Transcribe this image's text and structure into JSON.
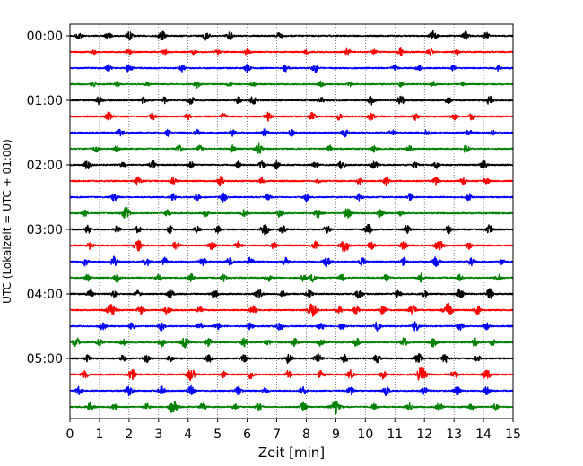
{
  "chart_data": {
    "type": "line",
    "subtype": "helicorder",
    "xlabel": "Zeit  [min]",
    "ylabel": "UTC (Lokalzeit = UTC + 01:00)",
    "xlim": [
      0,
      15
    ],
    "x_ticks": [
      0,
      1,
      2,
      3,
      4,
      5,
      6,
      7,
      8,
      9,
      10,
      11,
      12,
      13,
      14,
      15
    ],
    "minutes_per_line": 15,
    "y_tick_labels": [
      "00:00",
      "01:00",
      "02:00",
      "03:00",
      "04:00",
      "05:00"
    ],
    "vertical_grid": "dotted",
    "trace_colors": [
      "#000000",
      "#ff0000",
      "#0000ff",
      "#008000"
    ],
    "traces": [
      {
        "start": "00:00",
        "color": "#000000",
        "bursts": [
          [
            0.3,
            0.4
          ],
          [
            1.3,
            0.4
          ],
          [
            2.0,
            0.5
          ],
          [
            3.1,
            0.6
          ],
          [
            4.6,
            0.5
          ],
          [
            5.4,
            0.5
          ],
          [
            7.1,
            0.4
          ],
          [
            12.3,
            0.6
          ],
          [
            13.4,
            0.5
          ],
          [
            14.1,
            0.4
          ]
        ]
      },
      {
        "start": "00:15",
        "color": "#ff0000",
        "bursts": [
          [
            0.8,
            0.3
          ],
          [
            2.0,
            0.3
          ],
          [
            3.2,
            0.4
          ],
          [
            4.2,
            0.3
          ],
          [
            5.0,
            0.3
          ],
          [
            6.0,
            0.4
          ],
          [
            8.0,
            0.3
          ],
          [
            9.4,
            0.4
          ],
          [
            10.3,
            0.3
          ],
          [
            11.2,
            0.4
          ],
          [
            12.2,
            0.4
          ],
          [
            13.1,
            0.3
          ]
        ]
      },
      {
        "start": "00:30",
        "color": "#0000ff",
        "bursts": [
          [
            1.3,
            0.4
          ],
          [
            2.0,
            0.5
          ],
          [
            3.8,
            0.4
          ],
          [
            6.0,
            0.5
          ],
          [
            7.3,
            0.4
          ],
          [
            8.3,
            0.5
          ],
          [
            11.0,
            0.4
          ],
          [
            11.8,
            0.4
          ],
          [
            13.0,
            0.4
          ],
          [
            14.5,
            0.3
          ]
        ]
      },
      {
        "start": "00:45",
        "color": "#008000",
        "bursts": [
          [
            0.8,
            0.3
          ],
          [
            1.6,
            0.3
          ],
          [
            2.6,
            0.3
          ],
          [
            4.3,
            0.4
          ],
          [
            5.4,
            0.3
          ],
          [
            6.2,
            0.3
          ],
          [
            8.5,
            0.4
          ],
          [
            9.5,
            0.3
          ],
          [
            11.2,
            0.3
          ],
          [
            12.3,
            0.3
          ],
          [
            13.3,
            0.3
          ]
        ]
      },
      {
        "start": "01:00",
        "color": "#000000",
        "bursts": [
          [
            1.0,
            0.5
          ],
          [
            2.5,
            0.4
          ],
          [
            3.2,
            0.4
          ],
          [
            4.1,
            0.5
          ],
          [
            5.7,
            0.4
          ],
          [
            6.2,
            0.5
          ],
          [
            8.5,
            0.4
          ],
          [
            10.2,
            0.5
          ],
          [
            11.2,
            0.6
          ],
          [
            12.8,
            0.4
          ],
          [
            14.2,
            0.5
          ]
        ]
      },
      {
        "start": "01:15",
        "color": "#ff0000",
        "bursts": [
          [
            1.3,
            0.5
          ],
          [
            2.8,
            0.4
          ],
          [
            4.0,
            0.4
          ],
          [
            5.2,
            0.4
          ],
          [
            6.7,
            0.5
          ],
          [
            8.2,
            0.5
          ],
          [
            9.1,
            0.4
          ],
          [
            10.2,
            0.5
          ],
          [
            11.7,
            0.4
          ],
          [
            13.0,
            0.4
          ],
          [
            13.6,
            0.4
          ]
        ]
      },
      {
        "start": "01:30",
        "color": "#0000ff",
        "bursts": [
          [
            1.7,
            0.5
          ],
          [
            3.3,
            0.4
          ],
          [
            4.3,
            0.4
          ],
          [
            5.5,
            0.4
          ],
          [
            6.6,
            0.5
          ],
          [
            7.5,
            0.4
          ],
          [
            9.3,
            0.5
          ],
          [
            10.9,
            0.4
          ],
          [
            12.1,
            0.4
          ],
          [
            13.5,
            0.4
          ],
          [
            14.3,
            0.3
          ]
        ]
      },
      {
        "start": "01:45",
        "color": "#008000",
        "bursts": [
          [
            0.9,
            0.4
          ],
          [
            1.6,
            0.4
          ],
          [
            3.7,
            0.4
          ],
          [
            4.4,
            0.4
          ],
          [
            5.5,
            0.4
          ],
          [
            6.4,
            0.6
          ],
          [
            8.8,
            0.4
          ],
          [
            10.3,
            0.4
          ],
          [
            11.5,
            0.4
          ],
          [
            13.4,
            0.5
          ]
        ]
      },
      {
        "start": "02:00",
        "color": "#000000",
        "bursts": [
          [
            0.6,
            0.6
          ],
          [
            1.8,
            0.4
          ],
          [
            2.8,
            0.5
          ],
          [
            4.1,
            0.4
          ],
          [
            5.7,
            0.4
          ],
          [
            6.5,
            0.5
          ],
          [
            7.0,
            0.5
          ],
          [
            8.3,
            0.4
          ],
          [
            9.2,
            0.5
          ],
          [
            10.3,
            0.5
          ],
          [
            11.7,
            0.4
          ],
          [
            12.4,
            0.4
          ],
          [
            14.0,
            0.5
          ]
        ]
      },
      {
        "start": "02:15",
        "color": "#ff0000",
        "bursts": [
          [
            2.3,
            0.5
          ],
          [
            3.5,
            0.4
          ],
          [
            5.1,
            0.5
          ],
          [
            6.5,
            0.4
          ],
          [
            8.4,
            0.3
          ],
          [
            9.8,
            0.4
          ],
          [
            10.7,
            0.5
          ],
          [
            12.4,
            0.5
          ],
          [
            13.3,
            0.4
          ],
          [
            14.1,
            0.4
          ]
        ]
      },
      {
        "start": "02:30",
        "color": "#0000ff",
        "bursts": [
          [
            1.5,
            0.5
          ],
          [
            3.5,
            0.4
          ],
          [
            4.3,
            0.4
          ],
          [
            5.2,
            0.5
          ],
          [
            6.7,
            0.4
          ],
          [
            8.0,
            0.4
          ],
          [
            9.8,
            0.4
          ],
          [
            11.5,
            0.4
          ],
          [
            13.5,
            0.4
          ]
        ]
      },
      {
        "start": "02:45",
        "color": "#008000",
        "bursts": [
          [
            0.5,
            0.4
          ],
          [
            1.9,
            0.7
          ],
          [
            3.3,
            0.4
          ],
          [
            4.6,
            0.4
          ],
          [
            5.9,
            0.4
          ],
          [
            7.1,
            0.5
          ],
          [
            8.4,
            0.6
          ],
          [
            9.4,
            0.6
          ],
          [
            10.5,
            0.5
          ],
          [
            11.2,
            0.3
          ]
        ]
      },
      {
        "start": "03:00",
        "color": "#000000",
        "bursts": [
          [
            0.6,
            0.5
          ],
          [
            1.6,
            0.4
          ],
          [
            2.3,
            0.4
          ],
          [
            3.4,
            0.5
          ],
          [
            4.3,
            0.4
          ],
          [
            5.0,
            0.4
          ],
          [
            6.6,
            0.7
          ],
          [
            7.2,
            0.5
          ],
          [
            8.7,
            0.5
          ],
          [
            10.1,
            0.6
          ],
          [
            11.4,
            0.5
          ],
          [
            12.8,
            0.5
          ],
          [
            14.2,
            0.5
          ]
        ]
      },
      {
        "start": "03:15",
        "color": "#ff0000",
        "bursts": [
          [
            0.7,
            0.5
          ],
          [
            2.3,
            0.7
          ],
          [
            3.6,
            0.5
          ],
          [
            4.8,
            0.5
          ],
          [
            5.7,
            0.5
          ],
          [
            6.9,
            0.4
          ],
          [
            8.3,
            0.5
          ],
          [
            9.3,
            0.8
          ],
          [
            10.2,
            0.5
          ],
          [
            11.3,
            0.5
          ],
          [
            12.5,
            0.7
          ],
          [
            13.5,
            0.4
          ]
        ]
      },
      {
        "start": "03:30",
        "color": "#0000ff",
        "bursts": [
          [
            0.5,
            0.5
          ],
          [
            1.5,
            0.6
          ],
          [
            2.6,
            0.5
          ],
          [
            3.2,
            0.5
          ],
          [
            4.5,
            0.5
          ],
          [
            5.4,
            0.5
          ],
          [
            6.1,
            0.5
          ],
          [
            7.3,
            0.5
          ],
          [
            8.7,
            0.6
          ],
          [
            9.9,
            0.5
          ],
          [
            11.3,
            0.5
          ],
          [
            12.4,
            0.6
          ],
          [
            13.6,
            0.5
          ],
          [
            14.6,
            0.4
          ]
        ]
      },
      {
        "start": "03:45",
        "color": "#008000",
        "bursts": [
          [
            0.6,
            0.4
          ],
          [
            1.6,
            0.5
          ],
          [
            3.0,
            0.4
          ],
          [
            4.1,
            0.5
          ],
          [
            5.2,
            0.4
          ],
          [
            6.7,
            0.5
          ],
          [
            7.9,
            0.4
          ],
          [
            8.2,
            0.5
          ],
          [
            9.2,
            0.4
          ],
          [
            10.7,
            0.4
          ],
          [
            11.9,
            0.5
          ],
          [
            13.2,
            0.4
          ],
          [
            14.5,
            0.4
          ]
        ]
      },
      {
        "start": "04:00",
        "color": "#000000",
        "bursts": [
          [
            0.7,
            0.5
          ],
          [
            1.5,
            0.4
          ],
          [
            2.3,
            0.4
          ],
          [
            3.4,
            0.5
          ],
          [
            4.9,
            0.5
          ],
          [
            6.4,
            0.6
          ],
          [
            7.2,
            0.4
          ],
          [
            8.1,
            0.5
          ],
          [
            9.8,
            0.6
          ],
          [
            11.1,
            0.5
          ],
          [
            12.0,
            0.4
          ],
          [
            13.2,
            0.6
          ],
          [
            14.2,
            0.6
          ]
        ]
      },
      {
        "start": "04:15",
        "color": "#ff0000",
        "bursts": [
          [
            1.4,
            0.8
          ],
          [
            2.4,
            0.5
          ],
          [
            3.3,
            0.5
          ],
          [
            4.4,
            0.4
          ],
          [
            6.2,
            0.5
          ],
          [
            8.2,
            0.8
          ],
          [
            9.1,
            0.5
          ],
          [
            9.7,
            0.5
          ],
          [
            10.6,
            0.5
          ],
          [
            11.6,
            0.6
          ],
          [
            12.8,
            0.8
          ],
          [
            13.8,
            0.5
          ]
        ]
      },
      {
        "start": "04:30",
        "color": "#0000ff",
        "bursts": [
          [
            1.1,
            0.5
          ],
          [
            2.1,
            0.4
          ],
          [
            3.1,
            0.5
          ],
          [
            4.4,
            0.4
          ],
          [
            5.0,
            0.4
          ],
          [
            6.1,
            0.4
          ],
          [
            7.1,
            0.5
          ],
          [
            8.5,
            0.5
          ],
          [
            9.2,
            0.4
          ],
          [
            10.4,
            0.5
          ],
          [
            11.7,
            0.6
          ],
          [
            13.2,
            0.5
          ],
          [
            14.1,
            0.4
          ]
        ]
      },
      {
        "start": "04:45",
        "color": "#008000",
        "bursts": [
          [
            0.2,
            0.6
          ],
          [
            1.0,
            0.4
          ],
          [
            1.8,
            0.4
          ],
          [
            3.1,
            0.5
          ],
          [
            3.9,
            0.7
          ],
          [
            4.7,
            0.5
          ],
          [
            5.9,
            0.5
          ],
          [
            6.7,
            0.4
          ],
          [
            7.6,
            0.5
          ],
          [
            8.5,
            0.5
          ],
          [
            9.7,
            0.5
          ],
          [
            11.3,
            0.6
          ],
          [
            12.3,
            0.5
          ],
          [
            13.7,
            0.5
          ],
          [
            14.3,
            0.4
          ]
        ]
      },
      {
        "start": "05:00",
        "color": "#000000",
        "bursts": [
          [
            0.6,
            0.4
          ],
          [
            1.8,
            0.4
          ],
          [
            2.6,
            0.5
          ],
          [
            3.4,
            0.4
          ],
          [
            4.7,
            0.5
          ],
          [
            5.9,
            0.5
          ],
          [
            7.4,
            0.6
          ],
          [
            8.4,
            0.6
          ],
          [
            9.3,
            0.5
          ],
          [
            10.4,
            0.5
          ],
          [
            11.8,
            0.6
          ],
          [
            12.7,
            0.5
          ],
          [
            13.8,
            0.4
          ]
        ]
      },
      {
        "start": "05:15",
        "color": "#ff0000",
        "bursts": [
          [
            0.5,
            0.5
          ],
          [
            2.1,
            0.6
          ],
          [
            4.1,
            0.7
          ],
          [
            5.2,
            0.4
          ],
          [
            6.1,
            0.5
          ],
          [
            7.4,
            0.5
          ],
          [
            8.5,
            0.5
          ],
          [
            9.5,
            0.5
          ],
          [
            10.6,
            0.5
          ],
          [
            11.9,
            0.9
          ],
          [
            13.0,
            0.5
          ],
          [
            14.1,
            0.6
          ]
        ]
      },
      {
        "start": "05:30",
        "color": "#0000ff",
        "bursts": [
          [
            0.3,
            0.5
          ],
          [
            2.0,
            0.6
          ],
          [
            3.1,
            0.5
          ],
          [
            4.1,
            0.6
          ],
          [
            5.7,
            0.5
          ],
          [
            6.6,
            0.4
          ],
          [
            7.9,
            0.5
          ],
          [
            9.5,
            0.5
          ],
          [
            10.7,
            0.5
          ],
          [
            12.0,
            0.5
          ],
          [
            13.1,
            0.5
          ],
          [
            14.1,
            0.5
          ]
        ]
      },
      {
        "start": "05:45",
        "color": "#008000",
        "bursts": [
          [
            0.7,
            0.5
          ],
          [
            1.5,
            0.4
          ],
          [
            2.6,
            0.4
          ],
          [
            3.5,
            0.8
          ],
          [
            4.5,
            0.5
          ],
          [
            5.6,
            0.4
          ],
          [
            6.4,
            0.5
          ],
          [
            7.9,
            0.5
          ],
          [
            9.0,
            0.9
          ],
          [
            10.3,
            0.4
          ],
          [
            11.5,
            0.5
          ],
          [
            12.5,
            0.5
          ],
          [
            13.6,
            0.5
          ],
          [
            14.4,
            0.4
          ]
        ]
      }
    ]
  }
}
